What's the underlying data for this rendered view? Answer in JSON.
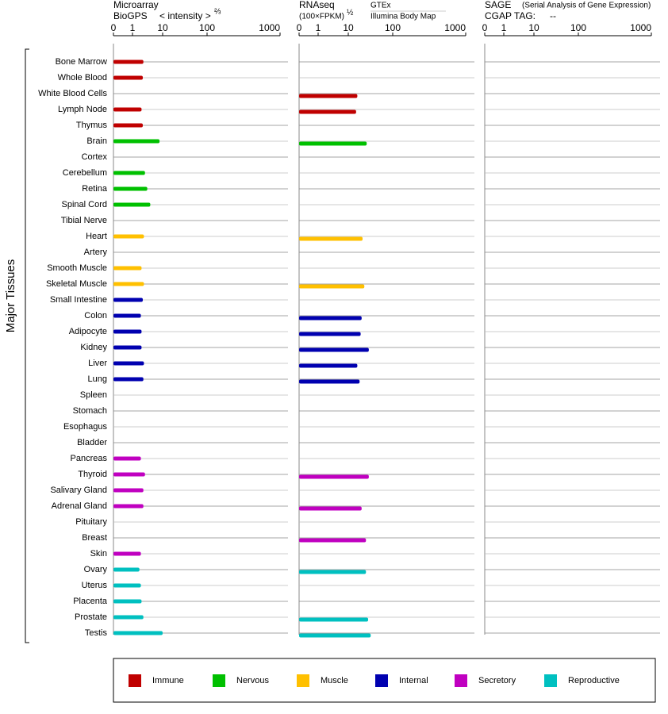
{
  "chart_data": {
    "type": "bar",
    "orientation": "horizontal",
    "ylabel": "Major Tissues",
    "categories": [
      "Bone Marrow",
      "Whole Blood",
      "White Blood Cells",
      "Lymph Node",
      "Thymus",
      "Brain",
      "Cortex",
      "Cerebellum",
      "Retina",
      "Spinal Cord",
      "Tibial Nerve",
      "Heart",
      "Artery",
      "Smooth Muscle",
      "Skeletal Muscle",
      "Small Intestine",
      "Colon",
      "Adipocyte",
      "Kidney",
      "Liver",
      "Lung",
      "Spleen",
      "Stomach",
      "Esophagus",
      "Bladder",
      "Pancreas",
      "Thyroid",
      "Salivary Gland",
      "Adrenal Gland",
      "Pituitary",
      "Breast",
      "Skin",
      "Ovary",
      "Uterus",
      "Placenta",
      "Prostate",
      "Testis"
    ],
    "category_group": [
      0,
      0,
      0,
      0,
      0,
      1,
      1,
      1,
      1,
      1,
      1,
      2,
      2,
      2,
      2,
      3,
      3,
      3,
      3,
      3,
      3,
      3,
      3,
      3,
      3,
      4,
      4,
      4,
      4,
      4,
      4,
      4,
      5,
      5,
      5,
      5,
      5
    ],
    "series": [
      {
        "name": "Immune",
        "color": "#c00000"
      },
      {
        "name": "Nervous",
        "color": "#00c000"
      },
      {
        "name": "Muscle",
        "color": "#ffc000"
      },
      {
        "name": "Internal",
        "color": "#0000b0"
      },
      {
        "name": "Secretory",
        "color": "#c000c0"
      },
      {
        "name": "Reproductive",
        "color": "#00c0c0"
      }
    ],
    "panels": [
      {
        "title": "Microarray",
        "source": "BioGPS",
        "unit": "< intensity >",
        "unit_power": "⅔",
        "xlim": [
          0,
          1000
        ],
        "xticks": [
          0,
          1,
          10,
          100,
          1000
        ],
        "values": [
          2.3,
          2.2,
          null,
          2.0,
          2.2,
          7.9,
          null,
          2.6,
          3.1,
          3.9,
          null,
          2.4,
          null,
          2.0,
          2.4,
          2.2,
          1.9,
          2.0,
          2.0,
          2.4,
          2.3,
          null,
          null,
          null,
          null,
          1.9,
          2.6,
          2.3,
          2.3,
          null,
          null,
          1.9,
          1.7,
          1.9,
          2.0,
          2.3,
          10
        ]
      },
      {
        "title": "RNAseq",
        "unit": "(100×FPKM)",
        "unit_power": "½",
        "source": "GTEx",
        "source2": "Illumina Body Map",
        "xlim": [
          0,
          1000
        ],
        "xticks": [
          0,
          1,
          10,
          100,
          1000
        ],
        "values": [
          null,
          null,
          16,
          15,
          null,
          26,
          null,
          null,
          null,
          null,
          null,
          21,
          null,
          null,
          23,
          null,
          20,
          19,
          29,
          16,
          18,
          null,
          null,
          null,
          null,
          null,
          29,
          null,
          20,
          null,
          25,
          null,
          25,
          null,
          null,
          28,
          32
        ]
      },
      {
        "title": "SAGE",
        "subtitle": "(Serial Analysis of Gene Expression)",
        "tag_label": "CGAP TAG:",
        "tag": "--",
        "xlim": [
          0,
          1000
        ],
        "xticks": [
          0,
          1,
          10,
          100,
          1000
        ],
        "values": [
          null,
          null,
          null,
          null,
          null,
          null,
          null,
          null,
          null,
          null,
          null,
          null,
          null,
          null,
          null,
          null,
          null,
          null,
          null,
          null,
          null,
          null,
          null,
          null,
          null,
          null,
          null,
          null,
          null,
          null,
          null,
          null,
          null,
          null,
          null,
          null,
          null
        ]
      }
    ]
  }
}
